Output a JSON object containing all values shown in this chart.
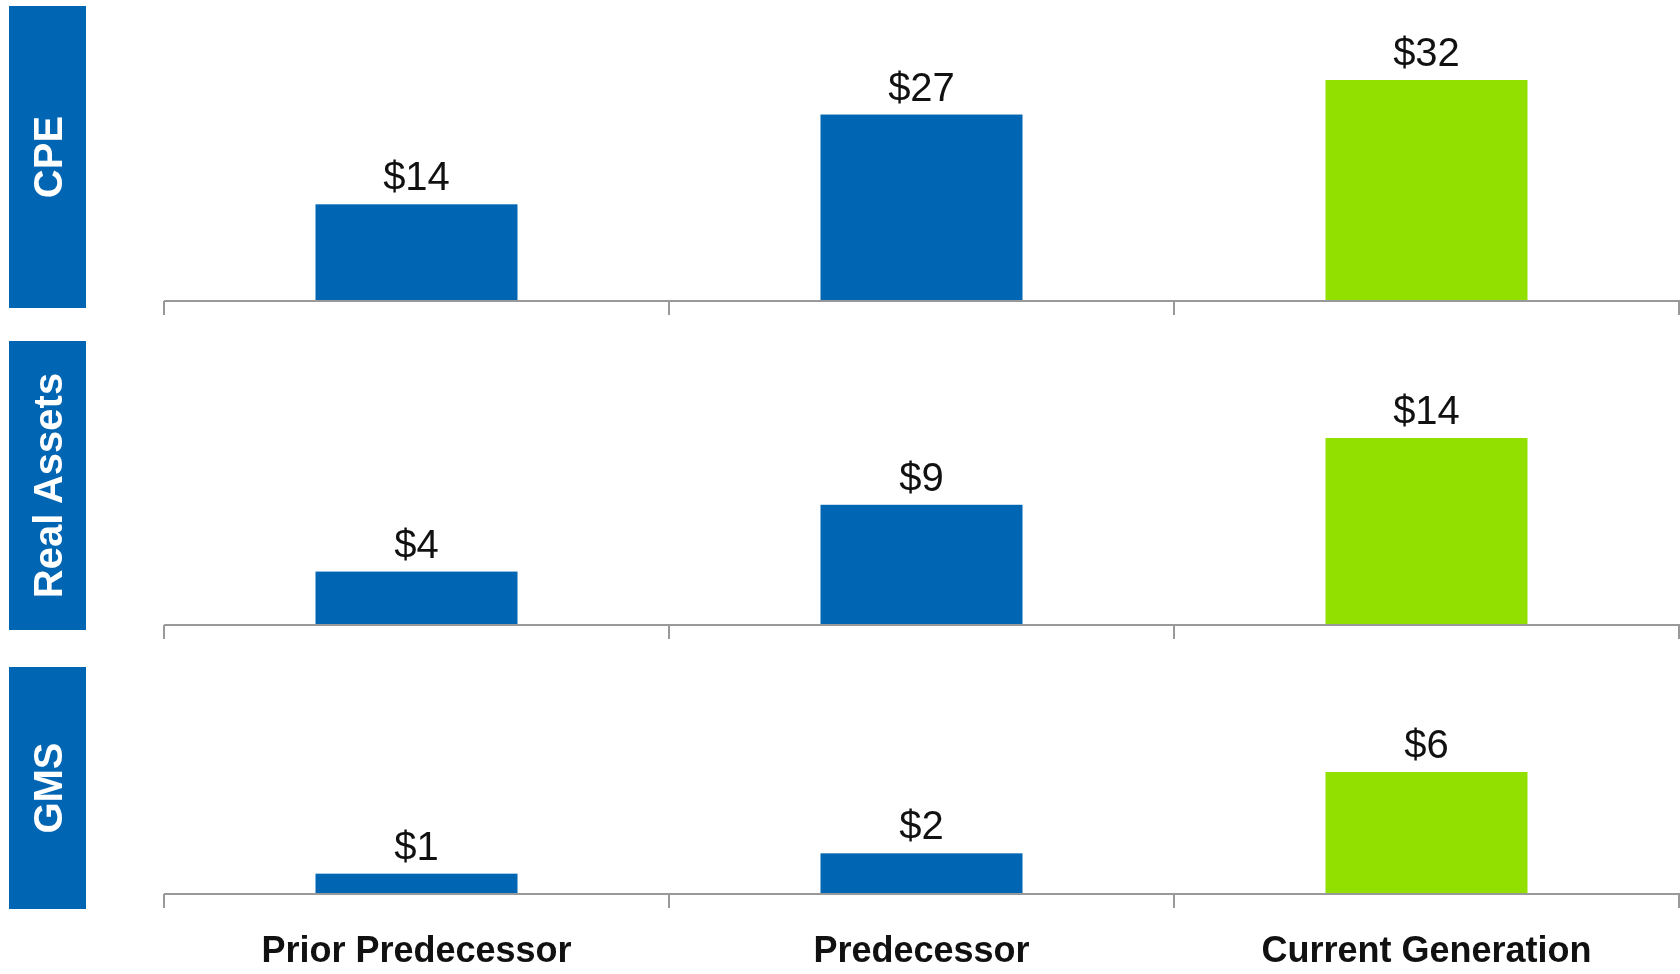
{
  "chart_data": [
    {
      "type": "bar",
      "ylabel": "CPE",
      "categories": [
        null,
        null,
        null
      ],
      "values": [
        14,
        27,
        32
      ],
      "value_labels": [
        "$14",
        "$27",
        "$32"
      ],
      "colors": [
        "#0066b3",
        "#0066b3",
        "#92e000"
      ],
      "tick_labels": false
    },
    {
      "type": "bar",
      "ylabel": "Real Assets",
      "categories": [
        null,
        null,
        null
      ],
      "values": [
        4,
        9,
        14
      ],
      "value_labels": [
        "$4",
        "$9",
        "$14"
      ],
      "colors": [
        "#0066b3",
        "#0066b3",
        "#92e000"
      ],
      "tick_labels": false
    },
    {
      "type": "bar",
      "ylabel": "GMS",
      "categories": [
        "Prior Predecessor",
        "Predecessor",
        "Current Generation"
      ],
      "values": [
        1,
        2,
        6
      ],
      "value_labels": [
        "$1",
        "$2",
        "$6"
      ],
      "colors": [
        "#0066b3",
        "#0066b3",
        "#92e000"
      ],
      "tick_labels": "x"
    }
  ]
}
